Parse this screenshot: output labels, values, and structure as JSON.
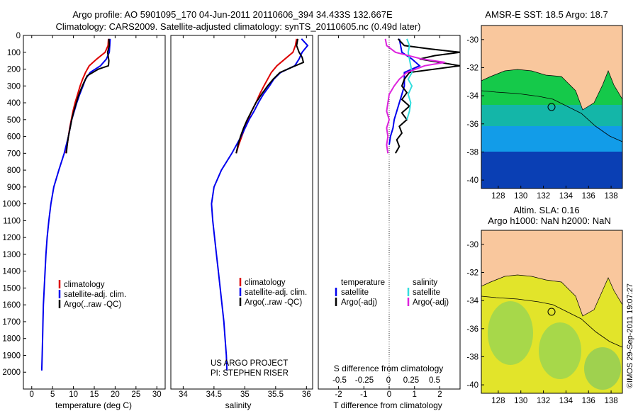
{
  "header": {
    "line1": "Argo profile: AO 5901095_170 04-Jun-2011 20110606_394 34.433S 132.667E",
    "line2": "Climatology: CARS2009. Satellite-adjusted climatology: synTS_20110605.nc (0.49d later)"
  },
  "colors": {
    "climatology": "#dd0000",
    "satellite": "#0000ee",
    "argo": "#000000",
    "salinity_sat": "#33dddd",
    "salinity_argo": "#dd22dd",
    "land": "#f9c79d"
  },
  "icon_names": [
    "float-position-circle-marker"
  ],
  "legend": {
    "temp": [
      "climatology",
      "satellite-adj. clim.",
      "Argo(..raw -QC)"
    ],
    "sal": [
      "climatology",
      "satellite-adj. clim.",
      "Argo(..raw -QC)"
    ],
    "diff_t_title": "temperature",
    "diff_s_title": "salinity",
    "diff_t": [
      "satellite",
      "Argo(-adj)"
    ],
    "diff_s": [
      "satellite",
      "Argo(-adj)"
    ]
  },
  "credit": {
    "line1": "US ARGO PROJECT",
    "line2": "PI: STEPHEN RISER"
  },
  "maps": {
    "sst_title": "AMSR-E SST: 18.5 Argo: 18.7",
    "sla_title1": "Altim. SLA: 0.16",
    "sla_title2": "Argo h1000: NaN h2000: NaN",
    "lat_ticks": [
      "-30",
      "-32",
      "-34",
      "-36",
      "-38",
      "-40"
    ],
    "lon_ticks": [
      "128",
      "130",
      "132",
      "134",
      "136",
      "138"
    ],
    "float_lat": -34.433,
    "float_lon": 132.667
  },
  "stamp": "©IMOS 29-Sep-2011 19:07:27",
  "chart_data": [
    {
      "type": "line",
      "xlabel": "temperature (deg C)",
      "ylabel": "",
      "xlim": [
        -2,
        32
      ],
      "ylim": [
        2100,
        0
      ],
      "x_ticks": [
        "0",
        "5",
        "10",
        "15",
        "20",
        "25",
        "30"
      ],
      "y_ticks": [
        "0",
        "100",
        "200",
        "300",
        "400",
        "500",
        "600",
        "700",
        "800",
        "900",
        "1000",
        "1100",
        "1200",
        "1300",
        "1400",
        "1500",
        "1600",
        "1700",
        "1800",
        "1900",
        "2000"
      ],
      "series": [
        {
          "name": "climatology",
          "pressure": [
            20,
            60,
            100,
            140,
            180,
            220,
            260,
            300,
            350,
            400,
            450,
            500,
            550,
            600,
            650,
            700
          ],
          "values": [
            18.4,
            18.3,
            17.6,
            15.6,
            13.8,
            12.9,
            12.2,
            11.6,
            11.0,
            10.4,
            9.9,
            9.5,
            9.1,
            8.8,
            8.5,
            8.2
          ]
        },
        {
          "name": "satellite-adj. clim.",
          "pressure": [
            20,
            60,
            100,
            140,
            180,
            220,
            260,
            300,
            350,
            400,
            450,
            500,
            600,
            700,
            800,
            900,
            1000,
            1100,
            1200,
            1300,
            1400,
            1500,
            1600,
            1700,
            1800,
            1900,
            1990
          ],
          "values": [
            18.8,
            18.7,
            18.6,
            17.9,
            16.5,
            14.0,
            12.9,
            12.3,
            11.5,
            10.8,
            10.2,
            9.6,
            8.8,
            7.8,
            6.5,
            5.3,
            4.6,
            4.1,
            3.7,
            3.4,
            3.2,
            3.0,
            2.8,
            2.7,
            2.6,
            2.5,
            2.4
          ]
        },
        {
          "name": "Argo(..raw -QC)",
          "pressure": [
            20,
            60,
            100,
            150,
            180,
            200,
            240,
            280,
            320,
            360,
            400,
            450,
            500,
            550,
            600,
            650,
            700
          ],
          "values": [
            18.5,
            18.6,
            18.2,
            18.5,
            18.4,
            16.0,
            13.3,
            12.5,
            11.8,
            11.2,
            10.7,
            10.1,
            9.6,
            9.2,
            8.8,
            8.5,
            8.3
          ]
        }
      ]
    },
    {
      "type": "line",
      "xlabel": "salinity",
      "ylabel": "",
      "xlim": [
        33.8,
        36.1
      ],
      "ylim": [
        2100,
        0
      ],
      "x_ticks": [
        "34",
        "34.5",
        "35",
        "35.5",
        "36"
      ],
      "series": [
        {
          "name": "climatology",
          "pressure": [
            20,
            60,
            100,
            140,
            180,
            220,
            260,
            300,
            350,
            400,
            450,
            500,
            550,
            600,
            650,
            700
          ],
          "values": [
            35.84,
            35.82,
            35.78,
            35.65,
            35.52,
            35.43,
            35.37,
            35.31,
            35.24,
            35.18,
            35.11,
            35.05,
            35.0,
            34.95,
            34.9,
            34.86
          ]
        },
        {
          "name": "satellite-adj. clim.",
          "pressure": [
            20,
            60,
            100,
            140,
            180,
            220,
            260,
            300,
            350,
            400,
            450,
            500,
            600,
            700,
            800,
            900,
            1000,
            1100,
            1200,
            1300,
            1400,
            1500,
            1600,
            1700,
            1800,
            1900,
            1990
          ],
          "values": [
            35.92,
            36.02,
            35.93,
            35.88,
            35.81,
            35.58,
            35.47,
            35.4,
            35.3,
            35.22,
            35.15,
            35.07,
            34.94,
            34.79,
            34.62,
            34.5,
            34.46,
            34.48,
            34.51,
            34.54,
            34.57,
            34.6,
            34.63,
            34.66,
            34.68,
            34.7,
            34.71
          ]
        },
        {
          "name": "Argo(..raw -QC)",
          "pressure": [
            20,
            60,
            100,
            130,
            160,
            190,
            220,
            260,
            300,
            350,
            400,
            450,
            500,
            550,
            600,
            650,
            700
          ],
          "values": [
            35.86,
            35.84,
            35.88,
            35.93,
            35.95,
            35.76,
            35.57,
            35.46,
            35.37,
            35.27,
            35.18,
            35.11,
            35.04,
            34.98,
            34.93,
            34.89,
            34.86
          ]
        }
      ]
    },
    {
      "type": "line",
      "xlabel": "T difference from climatology",
      "xlabel_top": "S difference from climatology",
      "xlim": [
        -2.8,
        2.8
      ],
      "ylim": [
        2100,
        0
      ],
      "x_ticks": [
        "-2",
        "-1",
        "0",
        "1",
        "2"
      ],
      "s_ticks": [
        "-0.5",
        "-0.25",
        "0",
        "0.25",
        "0.5"
      ],
      "series": [
        {
          "name": "temperature satellite",
          "pressure": [
            20,
            60,
            100,
            140,
            180,
            220,
            260,
            300,
            350,
            400,
            450,
            500,
            550,
            600,
            650
          ],
          "values": [
            0.4,
            0.45,
            0.5,
            0.9,
            1.2,
            0.6,
            0.6,
            0.6,
            0.5,
            0.4,
            0.3,
            0.2,
            0.15,
            0.05,
            0.0
          ]
        },
        {
          "name": "temperature Argo(-adj)",
          "pressure": [
            20,
            60,
            80,
            100,
            120,
            140,
            180,
            220,
            260,
            300,
            340,
            380,
            420,
            460,
            500,
            540,
            580,
            620,
            660,
            700
          ],
          "values": [
            0.35,
            0.6,
            1.6,
            2.8,
            1.8,
            1.2,
            2.8,
            0.8,
            0.6,
            0.5,
            0.7,
            0.5,
            0.8,
            0.5,
            0.7,
            0.4,
            0.5,
            0.3,
            0.4,
            0.25
          ]
        },
        {
          "name": "salinity satellite",
          "pressure": [
            20,
            60,
            100,
            140,
            180,
            220,
            260,
            300,
            350,
            400,
            450,
            500
          ],
          "values": [
            0.7,
            0.8,
            0.75,
            0.8,
            0.85,
            0.9,
            0.75,
            0.9,
            0.75,
            0.85,
            0.8,
            0.7
          ]
        },
        {
          "name": "salinity Argo(-adj)",
          "pressure": [
            20,
            60,
            100,
            140,
            160,
            180,
            220,
            260,
            300,
            350,
            400,
            450,
            500,
            550,
            600,
            650,
            700
          ],
          "values": [
            -0.15,
            -0.1,
            0.25,
            1.3,
            2.2,
            1.4,
            0.7,
            0.4,
            0.2,
            0.0,
            -0.05,
            -0.1,
            0.0,
            -0.1,
            -0.05,
            -0.1,
            -0.05
          ]
        }
      ]
    }
  ]
}
